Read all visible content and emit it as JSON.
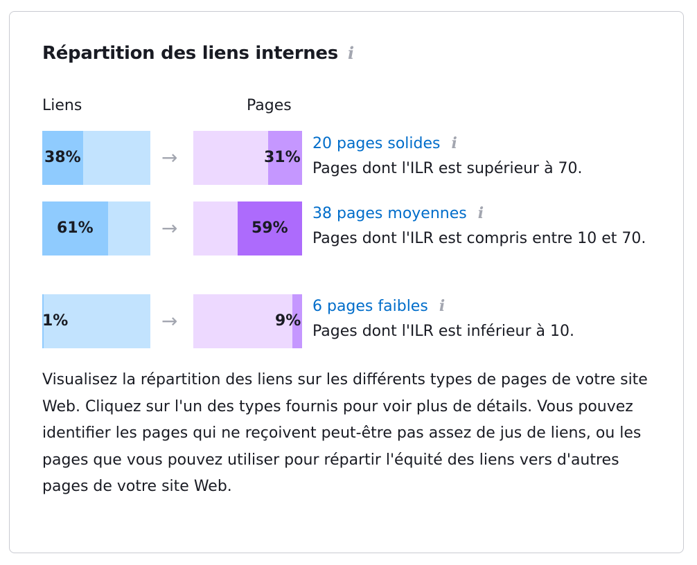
{
  "title": "Répartition des liens internes",
  "columns": {
    "links": "Liens",
    "pages": "Pages"
  },
  "colors": {
    "links_light": "#c2e3fe",
    "links_dark": "#8fcbfe",
    "pages_light": "#edd9ff",
    "pages_mid": "#c597ff",
    "pages_dark": "#ad6bfc",
    "link": "#006dca"
  },
  "rows": [
    {
      "links_pct": 38,
      "links_label": "38%",
      "pages_pct": 31,
      "pages_label": "31%",
      "pages_color": "#c597ff",
      "title": "20 pages solides",
      "desc": "Pages dont l'ILR est supérieur à 70."
    },
    {
      "links_pct": 61,
      "links_label": "61%",
      "pages_pct": 59,
      "pages_label": "59%",
      "pages_color": "#ad6bfc",
      "title": "38 pages moyennes",
      "desc": "Pages dont l'ILR est compris entre 10 et 70."
    },
    {
      "links_pct": 1,
      "links_label": "1%",
      "pages_pct": 9,
      "pages_label": "9%",
      "pages_color": "#c597ff",
      "title": "6 pages faibles",
      "desc": "Pages dont l'ILR est inférieur à 10."
    }
  ],
  "paragraph": "Visualisez la répartition des liens sur les différents types de pages de votre site Web. Cliquez sur l'un des types fournis pour voir plus de détails. Vous pouvez identifier les pages qui ne reçoivent peut-être pas assez de jus de liens, ou les pages que vous pouvez utiliser pour répartir l'équité des liens vers d'autres pages de votre site Web."
}
